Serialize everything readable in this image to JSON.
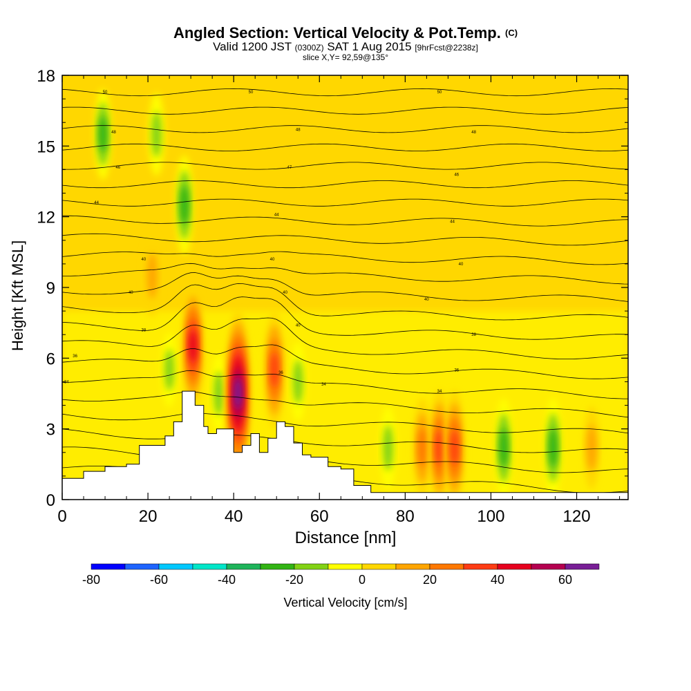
{
  "header": {
    "title": "Angled Section: Vertical Velocity & Pot.Temp.",
    "title_suffix": "(C)",
    "valid_prefix": "Valid 1200 JST",
    "valid_z": "(0300Z)",
    "valid_date": "SAT 1 Aug 2015",
    "forecast": "[9hrFcst@2238z]",
    "slice": "slice X,Y= 92,59@135°"
  },
  "chart_data": {
    "type": "heatmap",
    "title": "Angled Section: Vertical Velocity & Pot.Temp.",
    "xlabel": "Distance [nm]",
    "ylabel": "Height [Kft MSL]",
    "xlim": [
      0,
      132
    ],
    "ylim": [
      0,
      18
    ],
    "xticks": [
      0,
      20,
      40,
      60,
      80,
      100,
      120
    ],
    "yticks": [
      0,
      3,
      6,
      9,
      12,
      15,
      18
    ],
    "colorbar": {
      "label": "Vertical Velocity [cm/s]",
      "ticks": [
        -80,
        -60,
        -40,
        -20,
        0,
        20,
        40,
        60
      ],
      "levels": [
        -80,
        -70,
        -60,
        -50,
        -40,
        -30,
        -20,
        -10,
        0,
        10,
        20,
        30,
        40,
        50,
        60,
        70
      ],
      "colors": [
        "#0000ff",
        "#1e64ff",
        "#00c8ff",
        "#00e6c8",
        "#1eb45a",
        "#32b414",
        "#82d214",
        "#ffff00",
        "#ffd700",
        "#ffa500",
        "#ff7800",
        "#ff3c14",
        "#e6001e",
        "#b40050",
        "#781e96"
      ]
    },
    "updraft_cores": [
      {
        "x": 30.5,
        "y": 6.5,
        "w": 45
      },
      {
        "x": 41,
        "y": 4.5,
        "w": 70
      },
      {
        "x": 49.5,
        "y": 5.5,
        "w": 40
      },
      {
        "x": 21,
        "y": 9.5,
        "w": 20
      },
      {
        "x": 84,
        "y": 2.2,
        "w": 30
      },
      {
        "x": 88,
        "y": 2.2,
        "w": 40
      },
      {
        "x": 91.5,
        "y": 2.2,
        "w": 40
      },
      {
        "x": 123.5,
        "y": 2.2,
        "w": 20
      }
    ],
    "downdraft_bands": [
      {
        "x": 9.5,
        "y": 15.5,
        "w": -25
      },
      {
        "x": 22,
        "y": 15.5,
        "w": -20
      },
      {
        "x": 28.5,
        "y": 12.5,
        "w": -30
      },
      {
        "x": 25,
        "y": 5.5,
        "w": -15
      },
      {
        "x": 36.5,
        "y": 4.5,
        "w": -18
      },
      {
        "x": 55,
        "y": 5,
        "w": -18
      },
      {
        "x": 76,
        "y": 2.2,
        "w": -20
      },
      {
        "x": 103,
        "y": 2.2,
        "w": -30
      },
      {
        "x": 114.5,
        "y": 2.2,
        "w": -30
      }
    ],
    "terrain_kft": [
      [
        0,
        0.9
      ],
      [
        5,
        1.2
      ],
      [
        10,
        1.4
      ],
      [
        15,
        1.5
      ],
      [
        18,
        2.3
      ],
      [
        22,
        2.3
      ],
      [
        24,
        2.7
      ],
      [
        26,
        3.3
      ],
      [
        28,
        4.6
      ],
      [
        30,
        4.6
      ],
      [
        31,
        4.0
      ],
      [
        33,
        3.1
      ],
      [
        34,
        2.8
      ],
      [
        36,
        3.0
      ],
      [
        38,
        3.0
      ],
      [
        40,
        2.0
      ],
      [
        42,
        2.3
      ],
      [
        44,
        2.8
      ],
      [
        46,
        2.0
      ],
      [
        48,
        2.6
      ],
      [
        50,
        3.3
      ],
      [
        52,
        3.1
      ],
      [
        54,
        2.4
      ],
      [
        56,
        1.9
      ],
      [
        58,
        1.8
      ],
      [
        60,
        1.8
      ],
      [
        62,
        1.4
      ],
      [
        65,
        1.3
      ],
      [
        68,
        0.6
      ],
      [
        72,
        0.3
      ],
      [
        132,
        0.3
      ]
    ],
    "theta_contour_labels": [
      {
        "label": "50",
        "x": 10,
        "y": 17.3
      },
      {
        "label": "50",
        "x": 44,
        "y": 17.3
      },
      {
        "label": "50",
        "x": 88,
        "y": 17.3
      },
      {
        "label": "48",
        "x": 12,
        "y": 15.6
      },
      {
        "label": "48",
        "x": 55,
        "y": 15.7
      },
      {
        "label": "48",
        "x": 96,
        "y": 15.6
      },
      {
        "label": "46",
        "x": 13,
        "y": 14.1
      },
      {
        "label": "47",
        "x": 53,
        "y": 14.1
      },
      {
        "label": "46",
        "x": 92,
        "y": 13.8
      },
      {
        "label": "44",
        "x": 8,
        "y": 12.6
      },
      {
        "label": "44",
        "x": 50,
        "y": 12.1
      },
      {
        "label": "44",
        "x": 91,
        "y": 11.8
      },
      {
        "label": "40",
        "x": 19,
        "y": 10.2
      },
      {
        "label": "40",
        "x": 49,
        "y": 10.2
      },
      {
        "label": "40",
        "x": 93,
        "y": 10.0
      },
      {
        "label": "40",
        "x": 16,
        "y": 8.8
      },
      {
        "label": "40",
        "x": 52,
        "y": 8.8
      },
      {
        "label": "40",
        "x": 85,
        "y": 8.5
      },
      {
        "label": "38",
        "x": 19,
        "y": 7.2
      },
      {
        "label": "40",
        "x": 55,
        "y": 7.4
      },
      {
        "label": "38",
        "x": 96,
        "y": 7.0
      },
      {
        "label": "36",
        "x": 3,
        "y": 6.1
      },
      {
        "label": "36",
        "x": 51,
        "y": 5.4
      },
      {
        "label": "36",
        "x": 92,
        "y": 5.5
      },
      {
        "label": "34",
        "x": 1,
        "y": 5.0
      },
      {
        "label": "34",
        "x": 61,
        "y": 4.9
      },
      {
        "label": "34",
        "x": 88,
        "y": 4.6
      }
    ]
  }
}
